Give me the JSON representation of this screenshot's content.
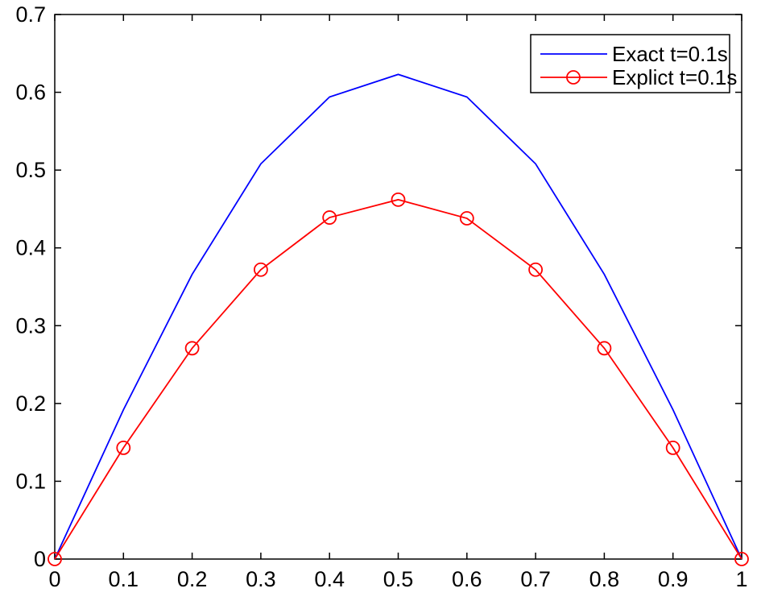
{
  "figure": {
    "background_color": "#ffffff",
    "axis_color": "#000000"
  },
  "chart_data": {
    "type": "line",
    "title": "",
    "xlabel": "",
    "ylabel": "",
    "xlim": [
      0,
      1
    ],
    "ylim": [
      0,
      0.7
    ],
    "grid": false,
    "legend_position": "upper-right",
    "x_ticks": [
      0,
      0.1,
      0.2,
      0.3,
      0.4,
      0.5,
      0.6,
      0.7,
      0.8,
      0.9,
      1
    ],
    "x_tick_labels": [
      "0",
      "0.1",
      "0.2",
      "0.3",
      "0.4",
      "0.5",
      "0.6",
      "0.7",
      "0.8",
      "0.9",
      "1"
    ],
    "y_ticks": [
      0,
      0.1,
      0.2,
      0.3,
      0.4,
      0.5,
      0.6,
      0.7
    ],
    "y_tick_labels": [
      "0",
      "0.1",
      "0.2",
      "0.3",
      "0.4",
      "0.5",
      "0.6",
      "0.7"
    ],
    "x": [
      0,
      0.1,
      0.2,
      0.3,
      0.4,
      0.5,
      0.6,
      0.7,
      0.8,
      0.9,
      1
    ],
    "series": [
      {
        "name": "Exact t=0.1s",
        "color": "#0000ff",
        "marker": "none",
        "values": [
          0,
          0.192,
          0.366,
          0.508,
          0.594,
          0.623,
          0.594,
          0.508,
          0.366,
          0.192,
          0
        ]
      },
      {
        "name": "Explict t=0.1s",
        "color": "#ff0000",
        "marker": "circle",
        "values": [
          0,
          0.143,
          0.271,
          0.372,
          0.439,
          0.462,
          0.438,
          0.372,
          0.271,
          0.143,
          0
        ]
      }
    ]
  }
}
